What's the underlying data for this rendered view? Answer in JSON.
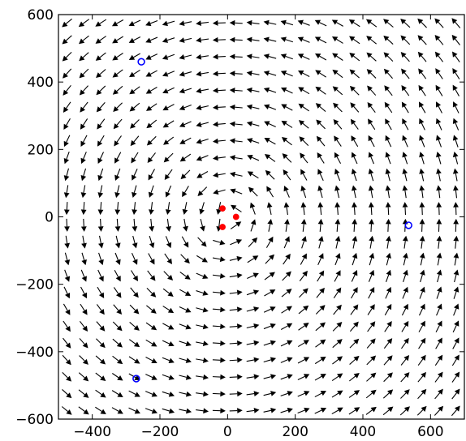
{
  "chart_data": {
    "type": "quiver",
    "title": "",
    "xlabel": "",
    "ylabel": "",
    "xlim": [
      -500,
      700
    ],
    "ylim": [
      -600,
      600
    ],
    "xticks": [
      -400,
      -200,
      0,
      200,
      400,
      600
    ],
    "yticks": [
      -600,
      -400,
      -200,
      0,
      200,
      400,
      600
    ],
    "xtick_labels": [
      "−400",
      "−200",
      "0",
      "200",
      "400",
      "600"
    ],
    "ytick_labels": [
      "−600",
      "−400",
      "−200",
      "0",
      "200",
      "400",
      "600"
    ],
    "grid": false,
    "legend": "none",
    "arrow_grid": {
      "x_start": -475,
      "x_step": 50,
      "x_count": 24,
      "y_start": -575,
      "y_step": 50,
      "y_count": 24
    },
    "field_sources": [
      {
        "x": -15,
        "y": 25,
        "strength": 1
      },
      {
        "x": 25,
        "y": 0,
        "strength": 1
      },
      {
        "x": -15,
        "y": -30,
        "strength": 1
      }
    ],
    "series": [
      {
        "marker": "filled-circle",
        "color": "#ff0000",
        "points": [
          {
            "x": -15,
            "y": 25
          },
          {
            "x": 25,
            "y": 0
          },
          {
            "x": -15,
            "y": -30
          }
        ]
      },
      {
        "marker": "open-circle",
        "color": "#0000ff",
        "points": [
          {
            "x": -255,
            "y": 460
          },
          {
            "x": 535,
            "y": -25
          },
          {
            "x": -270,
            "y": -480
          }
        ]
      }
    ],
    "arrow_color": "#000000"
  }
}
